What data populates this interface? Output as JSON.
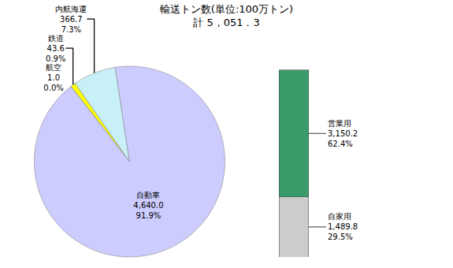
{
  "chart_data": [
    {
      "type": "pie",
      "title": "輸送トン数(単位:100万トン)",
      "subtitle": "計 5，051．3",
      "categories": [
        "航空",
        "鉄道",
        "内航海運",
        "自動車"
      ],
      "values": [
        1.0,
        43.6,
        366.7,
        4640.0
      ],
      "value_labels": [
        "1.0\n0.0%",
        "43.6\n0.9%",
        "366.7\n7.3%",
        "4,640.0\n91.9%"
      ],
      "colors": [
        "#ccccff",
        "#ffff00",
        "#c8f0f8",
        "#ccccff"
      ],
      "data_labels": true,
      "legend": false
    },
    {
      "type": "bar",
      "stacked": true,
      "series": [
        {
          "name": "自家用",
          "color": "#cccccc",
          "values": [
            1489.8
          ],
          "value_labels": [
            "1,489.8\n29.5%"
          ]
        },
        {
          "name": "営業用",
          "color": "#3a9a6a",
          "values": [
            3150.2
          ],
          "value_labels": [
            "3,150.2\n62.4%"
          ]
        }
      ],
      "ylim": [
        0,
        4732.8
      ],
      "tick_labels": false,
      "data_labels": true,
      "legend": false
    }
  ]
}
